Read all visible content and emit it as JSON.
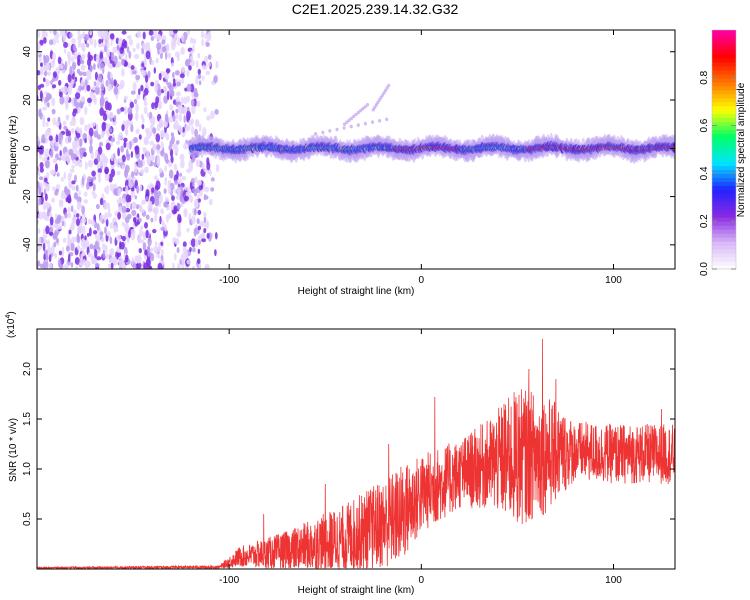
{
  "title": "C2E1.2025.239.14.32.G32",
  "chart_data": [
    {
      "type": "heatmap",
      "name": "spectrogram",
      "xlabel": "Height of straight line (km)",
      "ylabel": "Frequency (Hz)",
      "xlim": [
        -200,
        132
      ],
      "ylim": [
        -50,
        49
      ],
      "xticks": [
        -100,
        0,
        100
      ],
      "yticks": [
        -40,
        -20,
        0,
        20,
        40
      ],
      "noise_region_x": [
        -200,
        -107
      ],
      "signal_band": {
        "x_start": -120,
        "x_end": 132,
        "center_hz": 0,
        "halfwidth_hz": 3,
        "strong_segments_x": [
          [
            -15,
            20
          ],
          [
            55,
            132
          ]
        ]
      },
      "colorbar": {
        "label": "Normalized spectral amplitude",
        "range": [
          0.0,
          1.0
        ],
        "ticks": [
          0.0,
          0.2,
          0.4,
          0.6,
          0.8
        ],
        "tick_labels": [
          "0.0",
          "0.2",
          "0.4",
          "0.6",
          "0.8"
        ],
        "colormap": [
          "#ffffff",
          "#d8b8f8",
          "#8a2be2",
          "#2222ff",
          "#00e5ff",
          "#00ff66",
          "#ffff00",
          "#ff7a00",
          "#ff0000",
          "#ff00aa"
        ]
      }
    },
    {
      "type": "line",
      "name": "snr",
      "xlabel": "Height of straight line (km)",
      "ylabel": "SNR (10 * v/v)",
      "y_multiplier": "(x10",
      "y_exponent": "4",
      "y_multiplier_close": ")",
      "xlim": [
        -200,
        132
      ],
      "ylim": [
        0,
        2.4
      ],
      "xticks": [
        -100,
        0,
        100
      ],
      "yticks": [
        0.5,
        1.0,
        1.5,
        2.0
      ],
      "ytick_labels": [
        "0.5",
        "1.0",
        "1.5",
        "2.0"
      ],
      "color": "#ee3333",
      "envelope": [
        {
          "x": -200,
          "mean": 0.01,
          "spread": 0.02
        },
        {
          "x": -105,
          "mean": 0.02,
          "spread": 0.03
        },
        {
          "x": -95,
          "mean": 0.12,
          "spread": 0.2
        },
        {
          "x": -70,
          "mean": 0.18,
          "spread": 0.4
        },
        {
          "x": -40,
          "mean": 0.3,
          "spread": 0.7
        },
        {
          "x": -20,
          "mean": 0.45,
          "spread": 0.9
        },
        {
          "x": -10,
          "mean": 0.55,
          "spread": 1.0
        },
        {
          "x": 0,
          "mean": 0.75,
          "spread": 0.8
        },
        {
          "x": 20,
          "mean": 0.95,
          "spread": 0.7
        },
        {
          "x": 35,
          "mean": 1.05,
          "spread": 0.9
        },
        {
          "x": 50,
          "mean": 1.12,
          "spread": 1.4
        },
        {
          "x": 65,
          "mean": 1.15,
          "spread": 1.2
        },
        {
          "x": 80,
          "mean": 1.18,
          "spread": 0.6
        },
        {
          "x": 100,
          "mean": 1.15,
          "spread": 0.6
        },
        {
          "x": 132,
          "mean": 1.15,
          "spread": 0.6
        }
      ],
      "peaks": [
        {
          "x": -82,
          "y": 0.55
        },
        {
          "x": -50,
          "y": 0.85
        },
        {
          "x": -17,
          "y": 1.25
        },
        {
          "x": 7,
          "y": 1.72
        },
        {
          "x": 43,
          "y": 1.65
        },
        {
          "x": 56,
          "y": 2.0
        },
        {
          "x": 63,
          "y": 2.3
        },
        {
          "x": 70,
          "y": 1.9
        },
        {
          "x": 125,
          "y": 1.6
        }
      ]
    }
  ]
}
